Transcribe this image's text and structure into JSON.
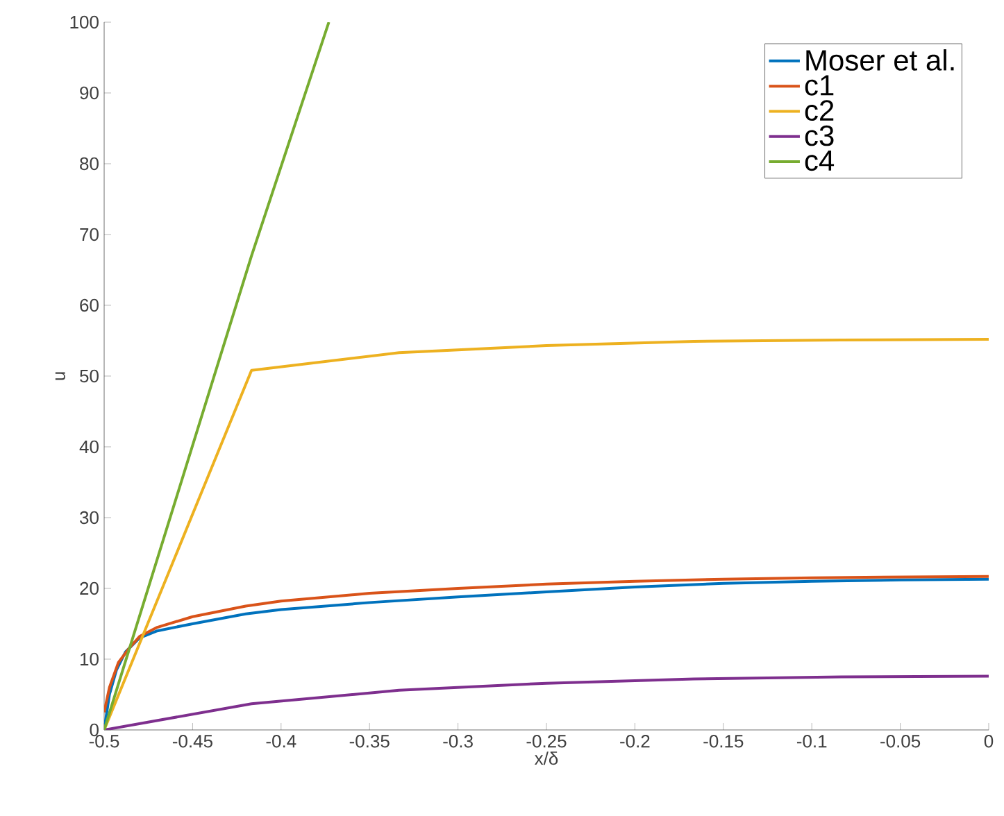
{
  "chart_data": {
    "type": "line",
    "xlabel": "x/δ",
    "ylabel": "u",
    "xlim": [
      -0.5,
      0
    ],
    "ylim": [
      0,
      100
    ],
    "xticks": [
      -0.5,
      -0.45,
      -0.4,
      -0.35,
      -0.3,
      -0.25,
      -0.2,
      -0.15,
      -0.1,
      -0.05,
      0
    ],
    "yticks": [
      0,
      10,
      20,
      30,
      40,
      50,
      60,
      70,
      80,
      90,
      100
    ],
    "grid": false,
    "legend": "top right",
    "marker": "none",
    "line_style": "solid",
    "series": [
      {
        "name": "Moser et al.",
        "color": "#0072bd",
        "x": [
          -0.5,
          -0.497,
          -0.493,
          -0.488,
          -0.48,
          -0.47,
          -0.45,
          -0.42,
          -0.4,
          -0.35,
          -0.3,
          -0.25,
          -0.2,
          -0.15,
          -0.1,
          -0.05,
          0
        ],
        "values": [
          0,
          5,
          8.5,
          11,
          13,
          14,
          15,
          16.4,
          17,
          18,
          18.8,
          19.5,
          20.2,
          20.7,
          21,
          21.2,
          21.3
        ]
      },
      {
        "name": "c1",
        "color": "#d95319",
        "x": [
          -0.5,
          -0.497,
          -0.492,
          -0.486,
          -0.48,
          -0.47,
          -0.45,
          -0.42,
          -0.4,
          -0.35,
          -0.3,
          -0.25,
          -0.2,
          -0.15,
          -0.1,
          -0.05,
          0
        ],
        "values": [
          2.5,
          6,
          9.5,
          11.5,
          13.2,
          14.5,
          16,
          17.5,
          18.2,
          19.3,
          20,
          20.6,
          21,
          21.3,
          21.5,
          21.6,
          21.7
        ]
      },
      {
        "name": "c2",
        "color": "#edb120",
        "x": [
          -0.5,
          -0.4167,
          -0.3333,
          -0.25,
          -0.1667,
          -0.0833,
          0
        ],
        "values": [
          0,
          50.8,
          53.3,
          54.3,
          54.9,
          55.1,
          55.2
        ]
      },
      {
        "name": "c3",
        "color": "#7e2f8e",
        "x": [
          -0.5,
          -0.4167,
          -0.3333,
          -0.25,
          -0.1667,
          -0.0833,
          0
        ],
        "values": [
          0,
          3.7,
          5.6,
          6.6,
          7.2,
          7.5,
          7.6
        ]
      },
      {
        "name": "c4",
        "color": "#77ac30",
        "x": [
          -0.5,
          -0.4167,
          -0.373
        ],
        "values": [
          0,
          67,
          100
        ]
      }
    ]
  }
}
